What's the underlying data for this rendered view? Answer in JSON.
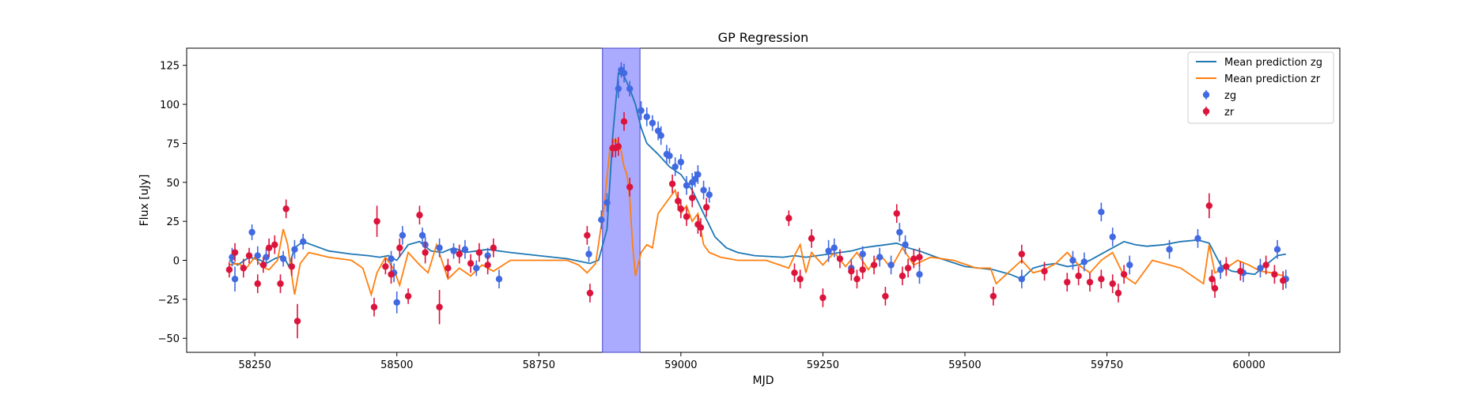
{
  "chart_data": {
    "type": "scatter",
    "title": "GP Regression",
    "xlabel": "MJD",
    "ylabel": "Flux [uJy]",
    "xlim": [
      58130,
      60160
    ],
    "ylim": [
      -59,
      136
    ],
    "x_ticks": [
      58250,
      58500,
      58750,
      59000,
      59250,
      59500,
      59750,
      60000
    ],
    "y_ticks": [
      -50,
      -25,
      0,
      25,
      50,
      75,
      100,
      125
    ],
    "x_tick_labels": [
      "58250",
      "58500",
      "58750",
      "59000",
      "59250",
      "59500",
      "59750",
      "60000"
    ],
    "y_tick_labels": [
      "−50",
      "−25",
      "0",
      "25",
      "50",
      "75",
      "100",
      "125"
    ],
    "legend_position": "top-right",
    "grid": false,
    "shaded_region": {
      "x": [
        58862,
        58928
      ],
      "color": "#aaaaff"
    },
    "series": [
      {
        "name": "Mean prediction zg",
        "kind": "line",
        "color": "#1f77b4",
        "x": [
          58205,
          58220,
          58240,
          58260,
          58270,
          58285,
          58300,
          58310,
          58320,
          58335,
          58350,
          58380,
          58420,
          58450,
          58470,
          58485,
          58500,
          58520,
          58540,
          58560,
          58580,
          58600,
          58620,
          58640,
          58660,
          58680,
          58700,
          58750,
          58800,
          58840,
          58855,
          58870,
          58880,
          58890,
          58900,
          58910,
          58920,
          58930,
          58940,
          58960,
          58980,
          59000,
          59020,
          59040,
          59060,
          59080,
          59100,
          59130,
          59180,
          59200,
          59220,
          59240,
          59260,
          59280,
          59300,
          59320,
          59340,
          59360,
          59380,
          59400,
          59420,
          59450,
          59500,
          59550,
          59580,
          59600,
          59620,
          59640,
          59660,
          59680,
          59700,
          59720,
          59740,
          59760,
          59780,
          59800,
          59820,
          59850,
          59880,
          59910,
          59930,
          59950,
          59970,
          59990,
          60010,
          60030,
          60050,
          60065
        ],
        "y": [
          0,
          -3,
          2,
          0,
          -2,
          1,
          3,
          -4,
          8,
          12,
          10,
          6,
          4,
          3,
          2,
          3,
          0,
          10,
          12,
          6,
          5,
          8,
          5,
          6,
          7,
          6,
          5,
          3,
          1,
          -2,
          0,
          20,
          80,
          120,
          118,
          110,
          100,
          85,
          75,
          68,
          60,
          55,
          45,
          30,
          15,
          8,
          5,
          3,
          2,
          3,
          2,
          3,
          4,
          5,
          6,
          8,
          9,
          10,
          11,
          8,
          6,
          2,
          -4,
          -6,
          -9,
          -12,
          -5,
          -3,
          -2,
          -4,
          -3,
          0,
          4,
          8,
          12,
          10,
          9,
          10,
          12,
          13,
          11,
          -3,
          -7,
          -8,
          -9,
          -3,
          3,
          4
        ],
        "visible": true
      },
      {
        "name": "Mean prediction zr",
        "kind": "line",
        "color": "#ff7f0e",
        "x": [
          58205,
          58220,
          58235,
          58250,
          58262,
          58275,
          58290,
          58300,
          58308,
          58315,
          58320,
          58330,
          58345,
          58380,
          58420,
          58440,
          58455,
          58465,
          58480,
          58495,
          58505,
          58520,
          58540,
          58555,
          58570,
          58590,
          58610,
          58630,
          58650,
          58670,
          58700,
          58750,
          58800,
          58820,
          58835,
          58850,
          58865,
          58875,
          58885,
          58895,
          58900,
          58905,
          58910,
          58915,
          58920,
          58930,
          58940,
          58950,
          58960,
          58970,
          58980,
          58990,
          59000,
          59010,
          59020,
          59030,
          59040,
          59050,
          59070,
          59100,
          59150,
          59190,
          59200,
          59210,
          59220,
          59230,
          59250,
          59270,
          59290,
          59310,
          59330,
          59350,
          59370,
          59390,
          59410,
          59440,
          59480,
          59520,
          59545,
          59555,
          59570,
          59600,
          59620,
          59640,
          59660,
          59680,
          59700,
          59720,
          59740,
          59760,
          59780,
          59800,
          59830,
          59860,
          59880,
          59900,
          59920,
          59930,
          59940,
          59960,
          59980,
          60000,
          60020,
          60040,
          60060
        ],
        "y": [
          -3,
          -2,
          -5,
          2,
          -4,
          -6,
          0,
          20,
          10,
          -10,
          -22,
          -2,
          5,
          2,
          0,
          -5,
          -22,
          -8,
          2,
          -6,
          -16,
          5,
          -3,
          -8,
          10,
          -12,
          -5,
          -10,
          -3,
          -7,
          0,
          0,
          0,
          -3,
          -8,
          -2,
          35,
          72,
          78,
          70,
          60,
          55,
          40,
          10,
          -10,
          5,
          10,
          8,
          30,
          35,
          40,
          45,
          30,
          35,
          25,
          30,
          10,
          5,
          2,
          0,
          0,
          -5,
          3,
          10,
          -8,
          5,
          -3,
          5,
          -4,
          5,
          -6,
          4,
          -5,
          8,
          -3,
          2,
          0,
          -5,
          -5,
          -15,
          -10,
          0,
          -8,
          -6,
          -2,
          5,
          -3,
          -8,
          0,
          5,
          -10,
          -15,
          0,
          -3,
          -5,
          -10,
          -15,
          10,
          -8,
          -5,
          0,
          -3,
          -7,
          -8,
          -10
        ],
        "visible": true
      },
      {
        "name": "zg",
        "kind": "errorbar",
        "color": "#4169e1",
        "x": [
          58210,
          58215,
          58245,
          58255,
          58270,
          58300,
          58320,
          58335,
          58490,
          58495,
          58500,
          58510,
          58545,
          58550,
          58575,
          58600,
          58620,
          58640,
          58660,
          58680,
          58838,
          58860,
          58870,
          58890,
          58895,
          58900,
          58910,
          58930,
          58940,
          58950,
          58960,
          58965,
          58975,
          58980,
          58990,
          59000,
          59010,
          59020,
          59025,
          59030,
          59040,
          59050,
          59260,
          59270,
          59300,
          59320,
          59350,
          59370,
          59385,
          59395,
          59420,
          59600,
          59690,
          59710,
          59740,
          59760,
          59790,
          59860,
          59910,
          59950,
          59990,
          60020,
          60050,
          60065
        ],
        "y": [
          2,
          -12,
          18,
          3,
          2,
          1,
          7,
          12,
          1,
          -8,
          -27,
          16,
          16,
          10,
          8,
          6,
          7,
          -5,
          3,
          -12,
          4,
          26,
          37,
          110,
          122,
          120,
          110,
          96,
          92,
          88,
          83,
          80,
          68,
          67,
          60,
          63,
          48,
          50,
          52,
          55,
          45,
          42,
          6,
          8,
          -5,
          4,
          2,
          -3,
          18,
          10,
          -9,
          -12,
          0,
          -1,
          31,
          15,
          -3,
          7,
          14,
          -6,
          -8,
          -5,
          7,
          -12
        ],
        "err": [
          6,
          8,
          5,
          6,
          6,
          5,
          6,
          5,
          5,
          6,
          7,
          6,
          5,
          5,
          6,
          5,
          6,
          5,
          5,
          6,
          5,
          6,
          6,
          6,
          5,
          6,
          5,
          6,
          6,
          5,
          6,
          6,
          6,
          5,
          6,
          5,
          6,
          6,
          5,
          6,
          6,
          5,
          7,
          6,
          6,
          5,
          6,
          6,
          6,
          6,
          6,
          6,
          6,
          6,
          6,
          6,
          6,
          6,
          6,
          6,
          6,
          6,
          6,
          6
        ]
      },
      {
        "name": "zr",
        "kind": "errorbar",
        "color": "#dc143c",
        "x": [
          58205,
          58215,
          58230,
          58240,
          58255,
          58265,
          58275,
          58285,
          58295,
          58305,
          58315,
          58325,
          58460,
          58465,
          58480,
          58490,
          58505,
          58520,
          58540,
          58550,
          58575,
          58590,
          58610,
          58630,
          58645,
          58660,
          58670,
          58835,
          58840,
          58880,
          58885,
          58890,
          58900,
          58910,
          58985,
          58995,
          59000,
          59010,
          59020,
          59030,
          59035,
          59045,
          59190,
          59200,
          59210,
          59230,
          59250,
          59280,
          59300,
          59310,
          59320,
          59340,
          59360,
          59380,
          59390,
          59400,
          59410,
          59420,
          59550,
          59600,
          59640,
          59680,
          59700,
          59720,
          59740,
          59760,
          59770,
          59780,
          59930,
          59935,
          59940,
          59960,
          59985,
          60030,
          60045,
          60060
        ],
        "y": [
          -6,
          5,
          -5,
          3,
          -15,
          -3,
          8,
          10,
          -15,
          33,
          -4,
          -39,
          -30,
          25,
          -4,
          -9,
          8,
          -23,
          29,
          5,
          -30,
          -5,
          4,
          -2,
          5,
          -3,
          8,
          16,
          -21,
          72,
          72,
          73,
          89,
          47,
          49,
          38,
          33,
          28,
          40,
          23,
          21,
          34,
          27,
          -8,
          -12,
          14,
          -24,
          1,
          -7,
          -12,
          -6,
          -3,
          -23,
          30,
          -10,
          -5,
          1,
          2,
          -23,
          4,
          -7,
          -14,
          -10,
          -14,
          -12,
          -15,
          -21,
          -9,
          35,
          -12,
          -18,
          -4,
          -7,
          -3,
          -9,
          -13
        ],
        "err": [
          5,
          6,
          6,
          5,
          6,
          5,
          6,
          6,
          6,
          6,
          6,
          11,
          6,
          10,
          5,
          6,
          6,
          5,
          6,
          7,
          11,
          6,
          6,
          6,
          6,
          6,
          6,
          6,
          6,
          6,
          6,
          6,
          6,
          6,
          6,
          6,
          6,
          6,
          6,
          6,
          6,
          6,
          5,
          6,
          6,
          6,
          6,
          6,
          6,
          6,
          6,
          6,
          6,
          6,
          6,
          6,
          6,
          6,
          6,
          6,
          6,
          6,
          6,
          6,
          6,
          6,
          6,
          6,
          8,
          6,
          6,
          6,
          6,
          6,
          6,
          6
        ]
      }
    ]
  }
}
